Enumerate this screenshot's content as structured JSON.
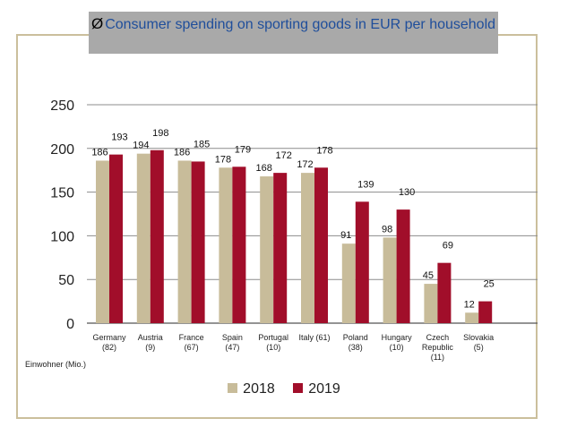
{
  "title_prefix": "Ø",
  "title": "Consumer spending on sporting goods in EUR per household",
  "footnote": "Einwohner (Mio.)",
  "colors": {
    "2018": "#c8bc9a",
    "2019": "#a10e2a",
    "frame": "#cbbf9c",
    "title_bg": "#a9a9a9",
    "title_text": "#1f4e9b"
  },
  "chart_data": {
    "type": "bar",
    "title": "Consumer spending on sporting goods in EUR per household",
    "categories": [
      [
        "Germany",
        "(82)"
      ],
      [
        "Austria",
        "(9)"
      ],
      [
        "France",
        "(67)"
      ],
      [
        "Spain",
        "(47)"
      ],
      [
        "Portugal",
        "(10)"
      ],
      [
        "Italy (61)"
      ],
      [
        "Poland",
        "(38)"
      ],
      [
        "Hungary",
        "(10)"
      ],
      [
        "Czech",
        "Republic",
        "(11)"
      ],
      [
        "Slovakia",
        "(5)"
      ]
    ],
    "series": [
      {
        "name": "2018",
        "values": [
          186,
          194,
          186,
          178,
          168,
          172,
          91,
          98,
          45,
          12
        ]
      },
      {
        "name": "2019",
        "values": [
          193,
          198,
          185,
          179,
          172,
          178,
          139,
          130,
          69,
          25
        ]
      }
    ],
    "ylim": [
      0,
      250
    ],
    "yticks": [
      0,
      50,
      100,
      150,
      200,
      250
    ],
    "grid": true,
    "legend_position": "bottom"
  }
}
